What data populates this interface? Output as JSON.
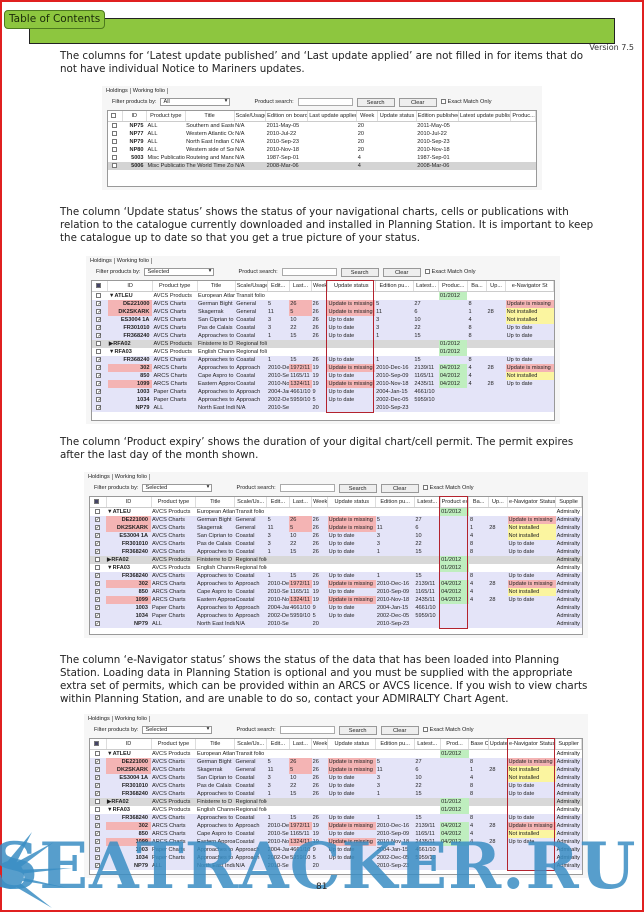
{
  "header": {
    "toc_label": "Table of Contents",
    "version": "Version 7.5"
  },
  "paragraphs": [
    "The columns for ‘Latest update published’ and ‘Last update applied’ are not filled in for items that do not have individual Notice to Mariners updates.",
    "The column ‘Update status’ shows the status of your navigational charts, cells or publications with relation to the catalogue currently downloaded and installed in Planning Station. It is important to keep the catalogue up to date so that you get a true picture of your status.",
    "The column ‘Product expiry’ shows the duration of your digital chart/cell permit. The permit expires after the last day of the month shown.",
    "The column ‘e-Navigator status’ shows the status of the data that has been loaded into Planning Station. Loading data in Planning Station is optional and you must be supplied with the appropriate extra set of permits, which can be provided within an ARCS or AVCS licence. If you wish to view charts within Planning Station, and are unable to do so, contact your ADMIRALTY Chart Agent."
  ],
  "ui": {
    "tab_holdings": "Holdings",
    "tab_working": "Working folio",
    "filter_label": "Filter products by:",
    "search_label": "Product search:",
    "search_btn": "Search",
    "clear_btn": "Clear",
    "exact_label": "Exact Match Only"
  },
  "colors": {
    "missing": "#f4b4b4",
    "not_installed": "#fbf5a0",
    "expiry": "#bfeebf",
    "highlight_box": "#b3232e",
    "watermark": "#3a8ec4"
  },
  "shot1": {
    "filter_value": "All",
    "columns": [
      [
        "chk",
        ""
      ],
      [
        "id",
        "ID"
      ],
      [
        "type",
        "Product type"
      ],
      [
        "title",
        "Title"
      ],
      [
        "scale",
        "Scale/Usage"
      ],
      [
        "ed",
        "Edition on board"
      ],
      [
        "last",
        "Last update applied"
      ],
      [
        "week",
        "Week"
      ],
      [
        "status",
        "Update status"
      ],
      [
        "edpub",
        "Edition published"
      ],
      [
        "latest",
        "Latest update published"
      ],
      [
        "prod",
        "Produc..."
      ]
    ],
    "rows": [
      {
        "kind": "white",
        "checked": false,
        "id": "NP75",
        "type": "ALL",
        "title": "Southern and Eastern S",
        "scale": "N/A",
        "ed": "2011-May-05",
        "week": "20",
        "edpub": "2011-May-05"
      },
      {
        "kind": "white",
        "checked": false,
        "id": "NP77",
        "type": "ALL",
        "title": "Western Atlantic Ocean",
        "scale": "N/A",
        "ed": "2010-Jul-22",
        "week": "20",
        "edpub": "2010-Jul-22"
      },
      {
        "kind": "white",
        "checked": false,
        "id": "NP79",
        "type": "ALL",
        "title": "North East Indian Ocea",
        "scale": "N/A",
        "ed": "2010-Sep-23",
        "week": "20",
        "edpub": "2010-Sep-23"
      },
      {
        "kind": "white",
        "checked": false,
        "id": "NP80",
        "type": "ALL",
        "title": "Western side of South A",
        "scale": "N/A",
        "ed": "2010-Nov-18",
        "week": "20",
        "edpub": "2010-Nov-18"
      },
      {
        "kind": "white",
        "checked": false,
        "id": "5003",
        "type": "Misc Publications",
        "title": "Routeing and Manoeuv",
        "scale": "N/A",
        "ed": "1987-Sep-01",
        "week": "4",
        "edpub": "1987-Sep-01"
      },
      {
        "kind": "sel-row",
        "checked": false,
        "id": "5006",
        "type": "Misc Publications",
        "title": "The World Time Zone C",
        "scale": "N/A",
        "ed": "2008-Mar-06",
        "week": "4",
        "edpub": "2008-Mar-06"
      }
    ]
  },
  "holdings_rows": [
    {
      "kind": "folio",
      "checked": false,
      "id": "▼ATLEU",
      "type": "AVCS Products",
      "title": "European Atlantic",
      "scale": "Transit folio",
      "expiry": "01/2012",
      "supplier": "Admiralty"
    },
    {
      "kind": "chart",
      "checked": true,
      "miss": true,
      "id": "DE221000",
      "type": "AVCS Charts",
      "title": "German Bight",
      "scale": "General",
      "ed": "5",
      "last": "26",
      "week": "26",
      "status": "Update is missing",
      "edpub": "5",
      "latest": "27",
      "base": "8",
      "upd": "",
      "enav": "Update is missing",
      "supplier": "Admiralty"
    },
    {
      "kind": "chart",
      "checked": true,
      "miss": true,
      "id": "DK2SKARK",
      "type": "AVCS Charts",
      "title": "Skagerrak",
      "scale": "General",
      "ed": "11",
      "last": "5",
      "week": "26",
      "status": "Update is missing",
      "edpub": "11",
      "latest": "6",
      "base": "1",
      "upd": "28",
      "enav": "Not installed",
      "supplier": "Admiralty"
    },
    {
      "kind": "chart",
      "checked": true,
      "id": "ES3004 1A",
      "type": "AVCS Charts",
      "title": "San Ciprian to",
      "scale": "Coastal",
      "ed": "3",
      "last": "10",
      "week": "26",
      "status": "Up to date",
      "edpub": "3",
      "latest": "10",
      "base": "4",
      "enav": "Not installed",
      "supplier": "Admiralty"
    },
    {
      "kind": "chart",
      "checked": true,
      "id": "FR301010",
      "type": "AVCS Charts",
      "title": "Pas de Calais",
      "scale": "Coastal",
      "ed": "3",
      "last": "22",
      "week": "26",
      "status": "Up to date",
      "edpub": "3",
      "latest": "22",
      "base": "8",
      "enav": "Up to date",
      "supplier": "Admiralty"
    },
    {
      "kind": "chart",
      "checked": true,
      "id": "FR368240",
      "type": "AVCS Charts",
      "title": "Approaches to",
      "scale": "Coastal",
      "ed": "1",
      "last": "15",
      "week": "26",
      "status": "Up to date",
      "edpub": "1",
      "latest": "15",
      "base": "8",
      "enav": "Up to date",
      "supplier": "Admiralty"
    },
    {
      "kind": "folio-selected",
      "checked": false,
      "id": "▶RFA02",
      "type": "AVCS Products",
      "title": "Finisterre to D",
      "scale": "Regional folio",
      "expiry": "01/2012",
      "supplier": "Admiralty"
    },
    {
      "kind": "folio",
      "checked": false,
      "id": "▼RFA03",
      "type": "AVCS Products",
      "title": "English Channel",
      "scale": "Regional folio",
      "expiry": "01/2012",
      "supplier": "Admiralty"
    },
    {
      "kind": "chart",
      "checked": true,
      "id": "FR368240",
      "type": "AVCS Charts",
      "title": "Approaches to",
      "scale": "Coastal",
      "ed": "1",
      "last": "15",
      "week": "26",
      "status": "Up to date",
      "edpub": "1",
      "latest": "15",
      "base": "8",
      "enav": "Up to date",
      "supplier": "Admiralty"
    },
    {
      "kind": "chart",
      "checked": true,
      "miss": true,
      "id": "302",
      "type": "ARCS Charts",
      "title": "Approaches to",
      "scale": "Approach",
      "ed": "2010-Dec",
      "last": "1972/11",
      "week": "19",
      "status": "Update is missing",
      "edpub": "2010-Dec-16",
      "latest": "2139/11",
      "expiry": "04/2012",
      "base": "4",
      "upd": "28",
      "enav": "Update is missing",
      "supplier": "Admiralty"
    },
    {
      "kind": "chart",
      "checked": true,
      "id": "850",
      "type": "ARCS Charts",
      "title": "Cape Aspro to",
      "scale": "Coastal",
      "ed": "2010-Sep",
      "last": "1165/11",
      "week": "19",
      "status": "Up to date",
      "edpub": "2010-Sep-09",
      "latest": "1165/11",
      "expiry": "04/2012",
      "base": "4",
      "enav": "Not installed",
      "supplier": "Admiralty"
    },
    {
      "kind": "chart",
      "checked": true,
      "miss": true,
      "id": "1099",
      "type": "ARCS Charts",
      "title": "Eastern Approaches",
      "scale": "Coastal",
      "ed": "2010-Nov",
      "last": "1324/11",
      "week": "19",
      "status": "Update is missing",
      "edpub": "2010-Nov-18",
      "latest": "2435/11",
      "expiry": "04/2012",
      "base": "4",
      "upd": "28",
      "enav": "Up to date",
      "supplier": "Admiralty"
    },
    {
      "kind": "chart",
      "checked": true,
      "id": "1003",
      "type": "Paper Charts",
      "title": "Approaches to",
      "scale": "Approach",
      "ed": "2004-Jan",
      "last": "4661/10",
      "week": "9",
      "status": "Up to date",
      "edpub": "2004-Jan-15",
      "latest": "4661/10",
      "supplier": "Admiralty"
    },
    {
      "kind": "chart",
      "checked": true,
      "id": "1034",
      "type": "Paper Charts",
      "title": "Approaches to",
      "scale": "Approach",
      "ed": "2002-Dec",
      "last": "5959/10",
      "week": "5",
      "status": "Up to date",
      "edpub": "2002-Dec-05",
      "latest": "5959/10",
      "supplier": "Admiralty"
    },
    {
      "kind": "chart",
      "checked": true,
      "id": "NP79",
      "type": "ALL",
      "title": "North East Indian",
      "scale": "N/A",
      "ed": "2010-Sep",
      "week": "20",
      "edpub": "2010-Sep-23",
      "supplier": "Admiralty"
    }
  ],
  "shot2": {
    "filter_value": "Selected",
    "highlighted_column": "status",
    "columns": [
      [
        "chk",
        ""
      ],
      [
        "id",
        "ID"
      ],
      [
        "type",
        "Product type"
      ],
      [
        "title",
        "Title"
      ],
      [
        "scale",
        "Scale/Usage"
      ],
      [
        "ed",
        "Edit..."
      ],
      [
        "last",
        "Last..."
      ],
      [
        "week",
        "Week"
      ],
      [
        "status",
        "Update status"
      ],
      [
        "edpub",
        "Edition pu..."
      ],
      [
        "latest",
        "Latest..."
      ],
      [
        "expiry",
        "Produc..."
      ],
      [
        "base",
        "Ba..."
      ],
      [
        "upd",
        "Up..."
      ],
      [
        "enav",
        "e-Navigator St"
      ]
    ]
  },
  "shot3": {
    "filter_value": "Selected",
    "highlighted_column": "expiry",
    "columns": [
      [
        "chk",
        ""
      ],
      [
        "id",
        "ID"
      ],
      [
        "type",
        "Product type"
      ],
      [
        "title",
        "Title"
      ],
      [
        "scale",
        "Scale/Us..."
      ],
      [
        "ed",
        "Edit..."
      ],
      [
        "last",
        "Last..."
      ],
      [
        "week",
        "Week"
      ],
      [
        "status",
        "Update status"
      ],
      [
        "edpub",
        "Edition pu..."
      ],
      [
        "latest",
        "Latest..."
      ],
      [
        "expiry",
        "Product expiry"
      ],
      [
        "base",
        "Ba..."
      ],
      [
        "upd",
        "Up..."
      ],
      [
        "enav",
        "e-Navigator Status"
      ],
      [
        "supplier",
        "Supplie"
      ]
    ]
  },
  "shot4": {
    "filter_value": "Selected",
    "highlighted_column": "enav",
    "columns": [
      [
        "chk",
        ""
      ],
      [
        "id",
        "ID"
      ],
      [
        "type",
        "Product type"
      ],
      [
        "title",
        "Title"
      ],
      [
        "scale",
        "Scale/Us..."
      ],
      [
        "ed",
        "Edit..."
      ],
      [
        "last",
        "Last..."
      ],
      [
        "week",
        "Week"
      ],
      [
        "status",
        "Update status"
      ],
      [
        "edpub",
        "Edition pu..."
      ],
      [
        "latest",
        "Latest..."
      ],
      [
        "expiry",
        "Prod..."
      ],
      [
        "base",
        "Base CD"
      ],
      [
        "upd",
        "Update CD"
      ],
      [
        "enav",
        "e-Navigator Status"
      ],
      [
        "supplier",
        "Supplier"
      ]
    ]
  },
  "footer": {
    "page_number": "81",
    "watermark": "SEATRACKER.RU"
  }
}
